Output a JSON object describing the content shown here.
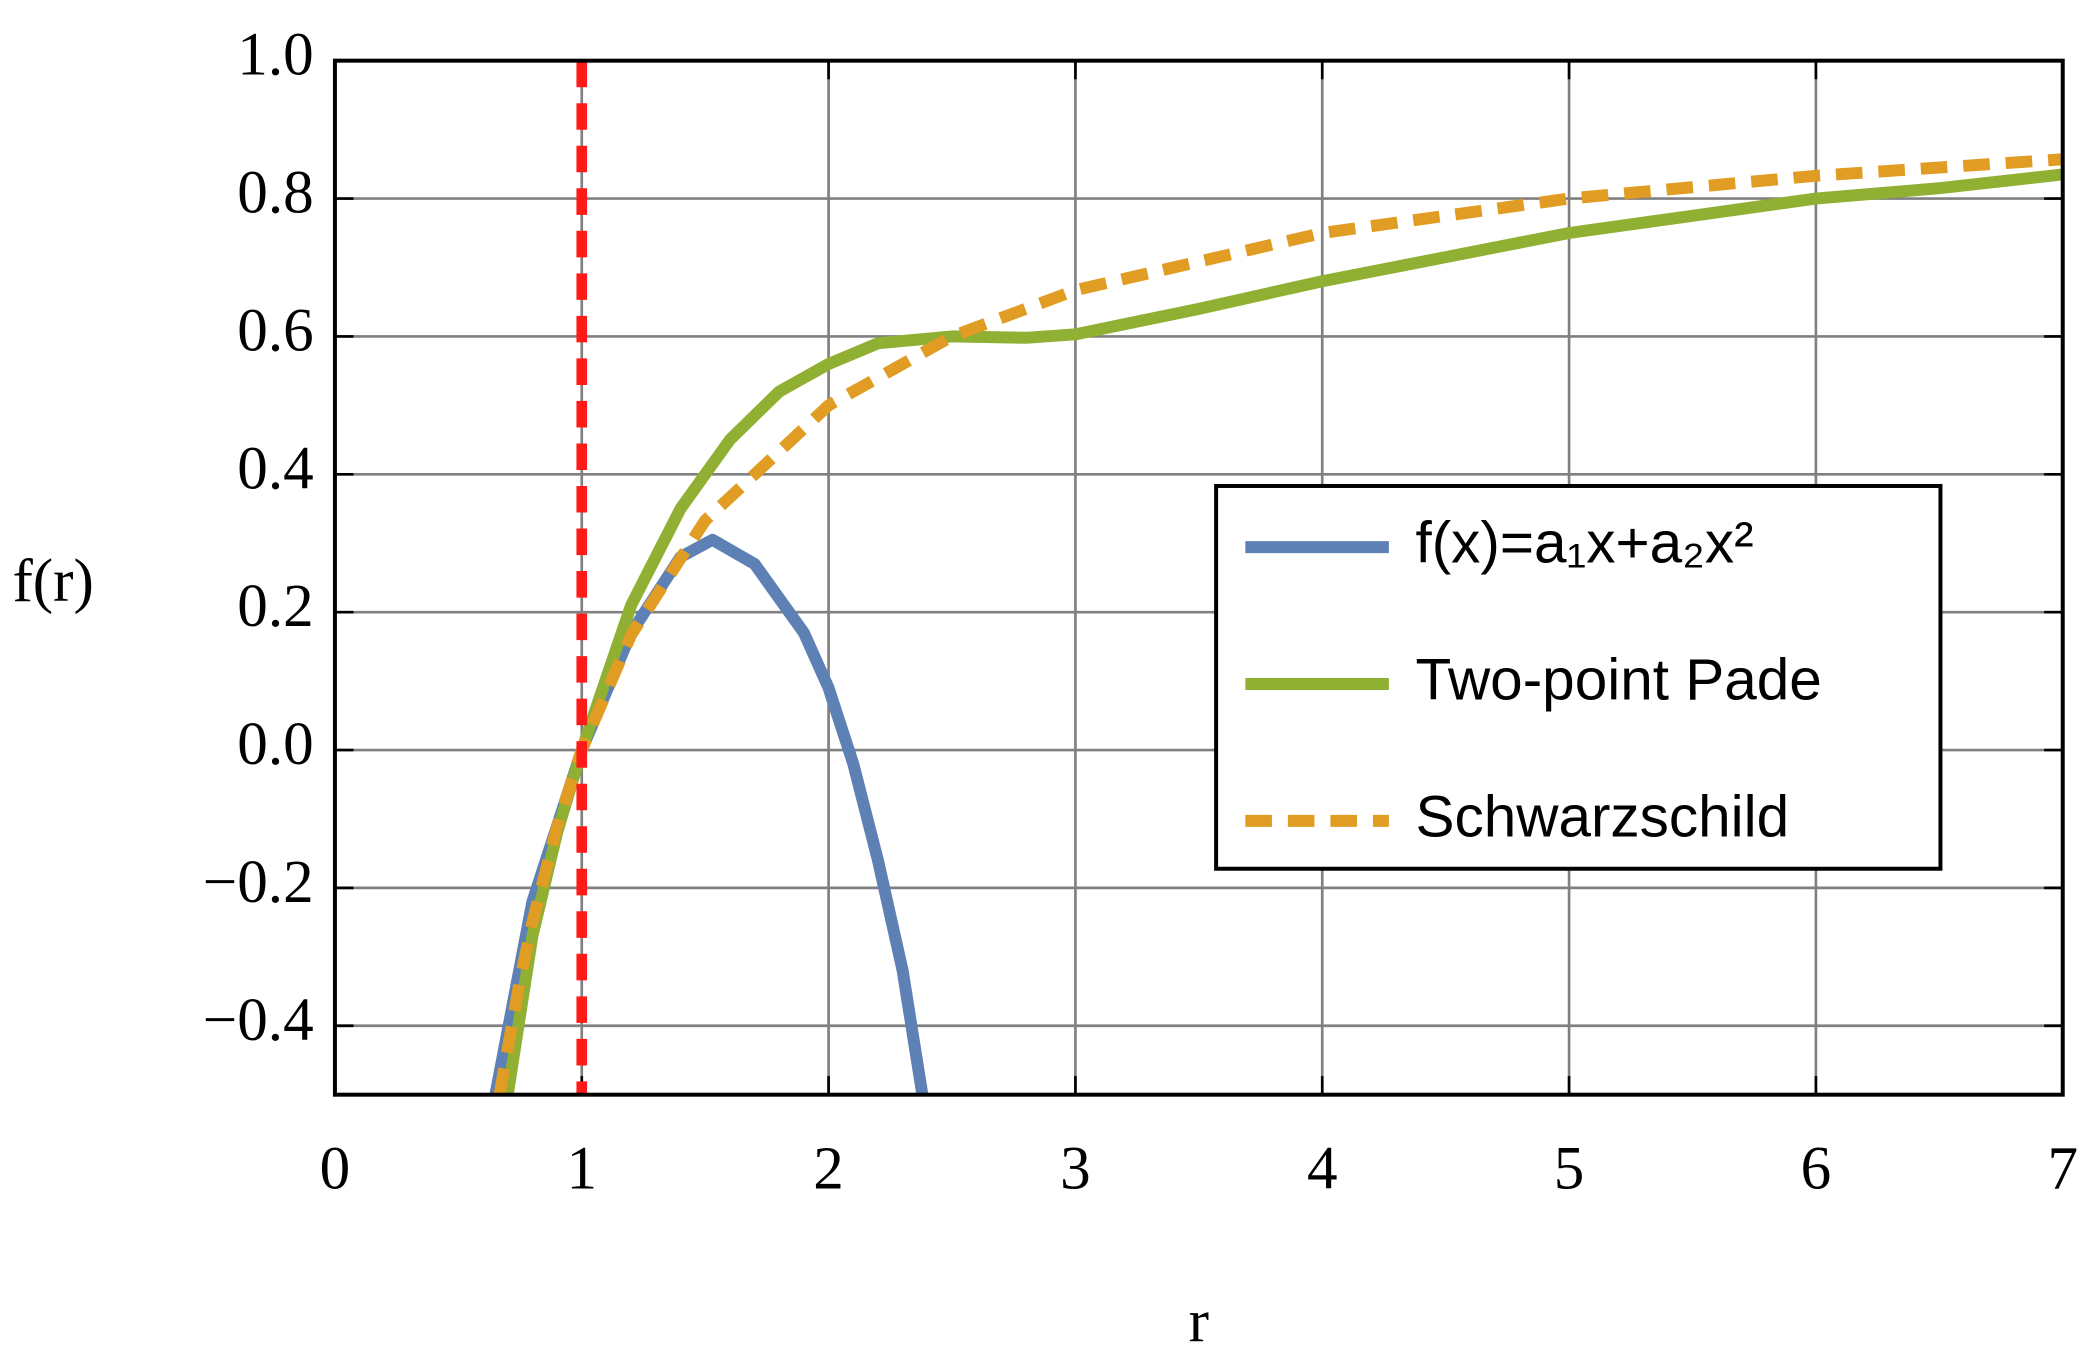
{
  "chart_data": {
    "type": "line",
    "xlabel": "r",
    "ylabel": "f(r)",
    "xlim": [
      0,
      7
    ],
    "ylim": [
      -0.5,
      1.0
    ],
    "xticks": [
      0,
      1,
      2,
      3,
      4,
      5,
      6,
      7
    ],
    "yticks": [
      {
        "value": -0.4,
        "label": "−0.4"
      },
      {
        "value": -0.2,
        "label": "−0.2"
      },
      {
        "value": 0,
        "label": "0.0"
      },
      {
        "value": 0.2,
        "label": "0.2"
      },
      {
        "value": 0.4,
        "label": "0.4"
      },
      {
        "value": 0.6,
        "label": "0.6"
      },
      {
        "value": 0.8,
        "label": "0.8"
      },
      {
        "value": 1.0,
        "label": "1.0"
      }
    ],
    "grid": true,
    "legend": "right",
    "vline": {
      "x": 1,
      "color": "#ff1a1a"
    },
    "series": [
      {
        "name": "f(x)=a₁x+a₂x²",
        "color": "#5e81b5",
        "dash": false,
        "x": [
          0.65,
          0.8,
          1.0,
          1.2,
          1.4,
          1.53,
          1.7,
          1.9,
          2.0,
          2.1,
          2.2,
          2.3,
          2.38
        ],
        "values": [
          -0.5,
          -0.22,
          0,
          0.17,
          0.28,
          0.305,
          0.27,
          0.17,
          0.09,
          -0.02,
          -0.16,
          -0.32,
          -0.5
        ]
      },
      {
        "name": "Two-point Pade",
        "color": "#8fb032",
        "dash": false,
        "x": [
          0.7,
          0.8,
          0.9,
          1.0,
          1.2,
          1.4,
          1.6,
          1.8,
          2.0,
          2.2,
          2.5,
          2.8,
          3.0,
          3.5,
          4.0,
          4.5,
          5.0,
          5.5,
          6.0,
          6.5,
          7.0
        ],
        "values": [
          -0.5,
          -0.27,
          -0.12,
          0,
          0.21,
          0.35,
          0.45,
          0.52,
          0.56,
          0.59,
          0.6,
          0.598,
          0.603,
          0.64,
          0.68,
          0.715,
          0.75,
          0.775,
          0.8,
          0.815,
          0.835
        ]
      },
      {
        "name": "Schwarzschild",
        "color": "#e19c24",
        "dash": true,
        "x": [
          0.667,
          0.75,
          0.8,
          0.9,
          1.0,
          1.2,
          1.5,
          2.0,
          2.5,
          3.0,
          4.0,
          5.0,
          6.0,
          7.0
        ],
        "values": [
          -0.5,
          -0.333,
          -0.25,
          -0.111,
          0,
          0.167,
          0.333,
          0.5,
          0.6,
          0.667,
          0.75,
          0.8,
          0.833,
          0.857
        ]
      }
    ]
  }
}
